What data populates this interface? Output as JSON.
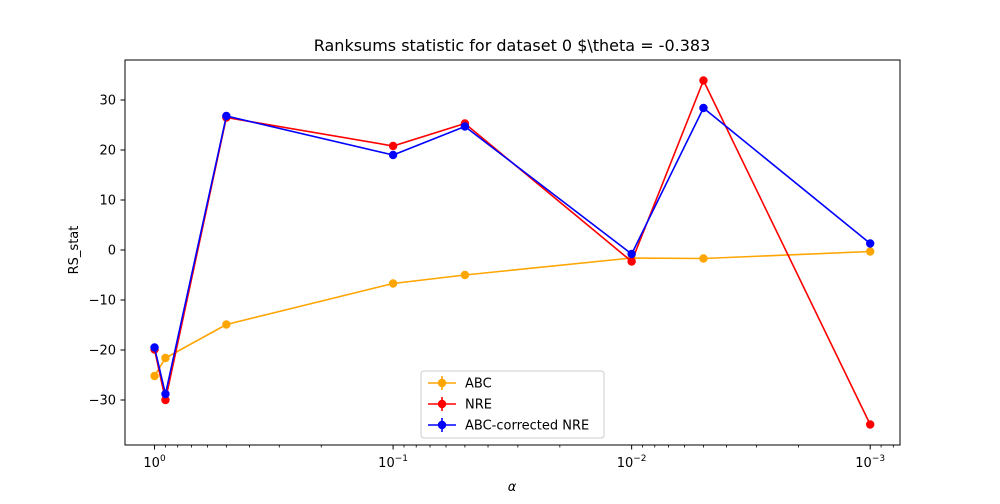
{
  "chart_data": {
    "type": "line",
    "title": "Ranksums statistic for dataset 0 $\\theta = -0.383",
    "xlabel": "α",
    "ylabel": "RS_stat",
    "x_scale": "log",
    "x_inverted": true,
    "xlim": [
      1.33,
      0.00075
    ],
    "ylim": [
      -39,
      38
    ],
    "x_ticks": [
      {
        "value": 1,
        "label": "10",
        "exp": "0"
      },
      {
        "value": 0.1,
        "label": "10",
        "exp": "−1"
      },
      {
        "value": 0.01,
        "label": "10",
        "exp": "−2"
      },
      {
        "value": 0.001,
        "label": "10",
        "exp": "−3"
      }
    ],
    "y_ticks": [
      {
        "value": 30,
        "label": "30"
      },
      {
        "value": 20,
        "label": "20"
      },
      {
        "value": 10,
        "label": "10"
      },
      {
        "value": 0,
        "label": "0"
      },
      {
        "value": -10,
        "label": "−10"
      },
      {
        "value": -20,
        "label": "−20"
      },
      {
        "value": -30,
        "label": "−30"
      }
    ],
    "x": [
      1.0,
      0.9,
      0.5,
      0.1,
      0.05,
      0.01,
      0.005,
      0.001
    ],
    "series": [
      {
        "name": "ABC",
        "color": "#ffa500",
        "values": [
          -25.2,
          -21.6,
          -14.9,
          -6.7,
          -5.0,
          -1.6,
          -1.7,
          -0.3
        ]
      },
      {
        "name": "NRE",
        "color": "#ff0000",
        "values": [
          -19.9,
          -30.0,
          26.5,
          20.8,
          25.3,
          -2.3,
          33.9,
          -34.9
        ]
      },
      {
        "name": "ABC-corrected NRE",
        "color": "#0000ff",
        "values": [
          -19.5,
          -28.8,
          26.8,
          19.0,
          24.7,
          -0.8,
          28.4,
          1.3
        ]
      }
    ],
    "legend_position": "lower center",
    "grid": false
  }
}
